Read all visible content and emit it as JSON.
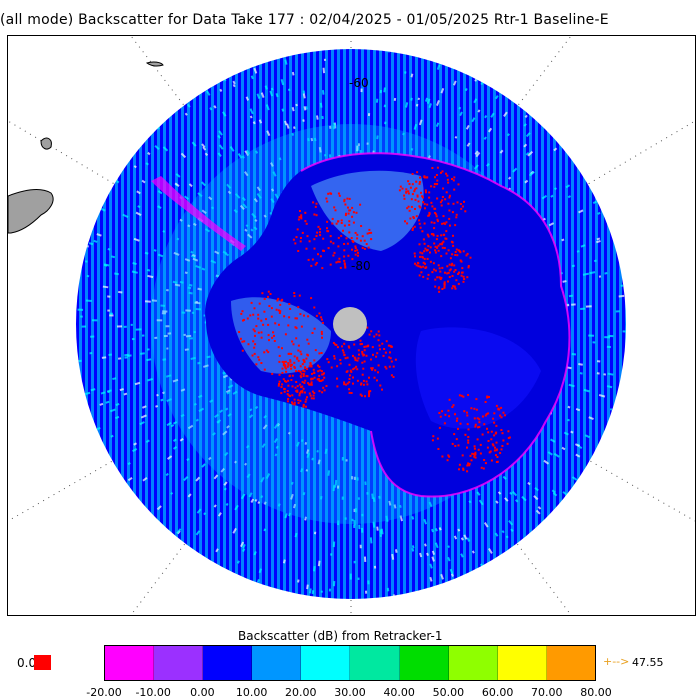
{
  "title": "(all mode) Backscatter for Data Take 177 : 02/04/2025 - 01/05/2025 Rtr-1 Baseline-E",
  "latitude_labels": {
    "outer": "-60",
    "inner": "-80"
  },
  "colorbar": {
    "title": "Backscatter (dB) from Retracker-1",
    "ticks": [
      "-20.00",
      "-10.00",
      "0.00",
      "10.00",
      "20.00",
      "30.00",
      "40.00",
      "50.00",
      "60.00",
      "70.00",
      "80.00"
    ],
    "colors": [
      "#ff00ff",
      "#9b30ff",
      "#0000ff",
      "#0096ff",
      "#00ffff",
      "#00e8a0",
      "#00dd00",
      "#8fff00",
      "#ffff00",
      "#ff9a00"
    ],
    "zero_label": "0.0",
    "zero_color": "#ff0000",
    "max_arrow": "+-->",
    "max_value": "47.55"
  },
  "map_colors": {
    "ocean_base": "#0000ff",
    "ocean_speckle": "#00ffff",
    "ice_shelf": "#5fb8ff",
    "interior": "#0000dd",
    "high_backscatter": "#ff0000",
    "coast_edge": "#ff00ff",
    "land_gray": "#a0a0a0",
    "pole_hole": "#c0c0c0"
  }
}
